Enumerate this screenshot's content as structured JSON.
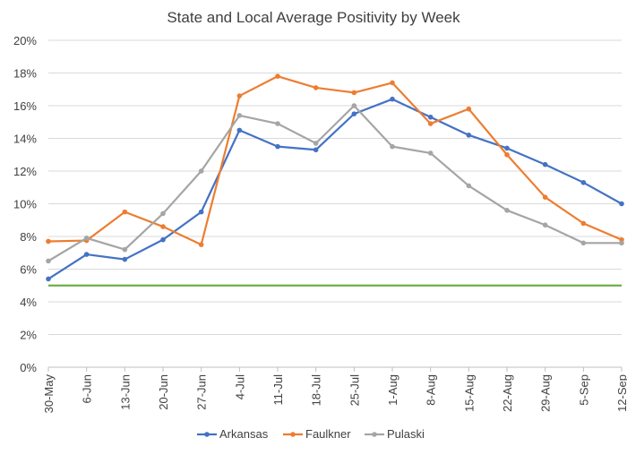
{
  "chart_data": {
    "type": "line",
    "title": "State and Local Average Positivity by Week",
    "xlabel": "",
    "ylabel": "",
    "ylim": [
      0,
      20
    ],
    "y_ticks": [
      0,
      2,
      4,
      6,
      8,
      10,
      12,
      14,
      16,
      18,
      20
    ],
    "y_tick_labels": [
      "0%",
      "2%",
      "4%",
      "6%",
      "8%",
      "10%",
      "12%",
      "14%",
      "16%",
      "18%",
      "20%"
    ],
    "categories": [
      "30-May",
      "6-Jun",
      "13-Jun",
      "20-Jun",
      "27-Jun",
      "4-Jul",
      "11-Jul",
      "18-Jul",
      "25-Jul",
      "1-Aug",
      "8-Aug",
      "15-Aug",
      "22-Aug",
      "29-Aug",
      "5-Sep",
      "12-Sep"
    ],
    "series": [
      {
        "name": "Arkansas",
        "color": "#4472C4",
        "values": [
          5.4,
          6.9,
          6.6,
          7.8,
          9.5,
          14.5,
          13.5,
          13.3,
          15.5,
          16.4,
          15.3,
          14.2,
          13.4,
          12.4,
          11.3,
          10.0
        ]
      },
      {
        "name": "Faulkner",
        "color": "#ED7D31",
        "values": [
          7.7,
          7.75,
          9.5,
          8.6,
          7.5,
          16.6,
          17.8,
          17.1,
          16.8,
          17.4,
          14.9,
          15.8,
          13.0,
          10.4,
          8.8,
          7.8
        ]
      },
      {
        "name": "Pulaski",
        "color": "#A5A5A5",
        "values": [
          6.5,
          7.9,
          7.2,
          9.4,
          12.0,
          15.4,
          14.9,
          13.7,
          16.0,
          13.5,
          13.1,
          11.1,
          9.6,
          8.7,
          7.6,
          7.6
        ]
      }
    ],
    "reference_line": {
      "value": 5,
      "color": "#70AD47"
    },
    "grid": true,
    "legend_position": "bottom"
  }
}
